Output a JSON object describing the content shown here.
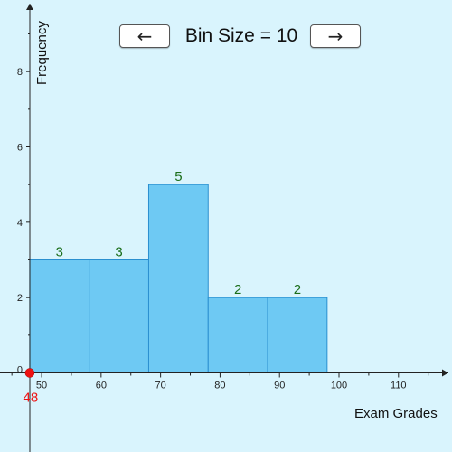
{
  "controls": {
    "prev_label": "←",
    "next_label": "→",
    "bin_title": "Bin Size = 10"
  },
  "chart_data": {
    "type": "bar",
    "title": "",
    "xlabel": "Exam Grades",
    "ylabel": "Frequency",
    "bin_size": 10,
    "bins": [
      {
        "start": 48,
        "end": 58,
        "count": 3
      },
      {
        "start": 58,
        "end": 68,
        "count": 3
      },
      {
        "start": 68,
        "end": 78,
        "count": 5
      },
      {
        "start": 78,
        "end": 88,
        "count": 2
      },
      {
        "start": 88,
        "end": 98,
        "count": 2
      }
    ],
    "x_ticks": [
      50,
      60,
      70,
      80,
      90,
      100,
      110
    ],
    "y_ticks": [
      0,
      2,
      4,
      6,
      8
    ],
    "xlim": [
      43,
      119
    ],
    "ylim": [
      -2.1,
      9.9
    ],
    "start_point": {
      "value": 48,
      "label": "48",
      "color": "#ee1111"
    },
    "bar_fill": "#6ec9f3",
    "bar_stroke": "#2a8fcf",
    "count_label_color": "#1b6e1b"
  }
}
